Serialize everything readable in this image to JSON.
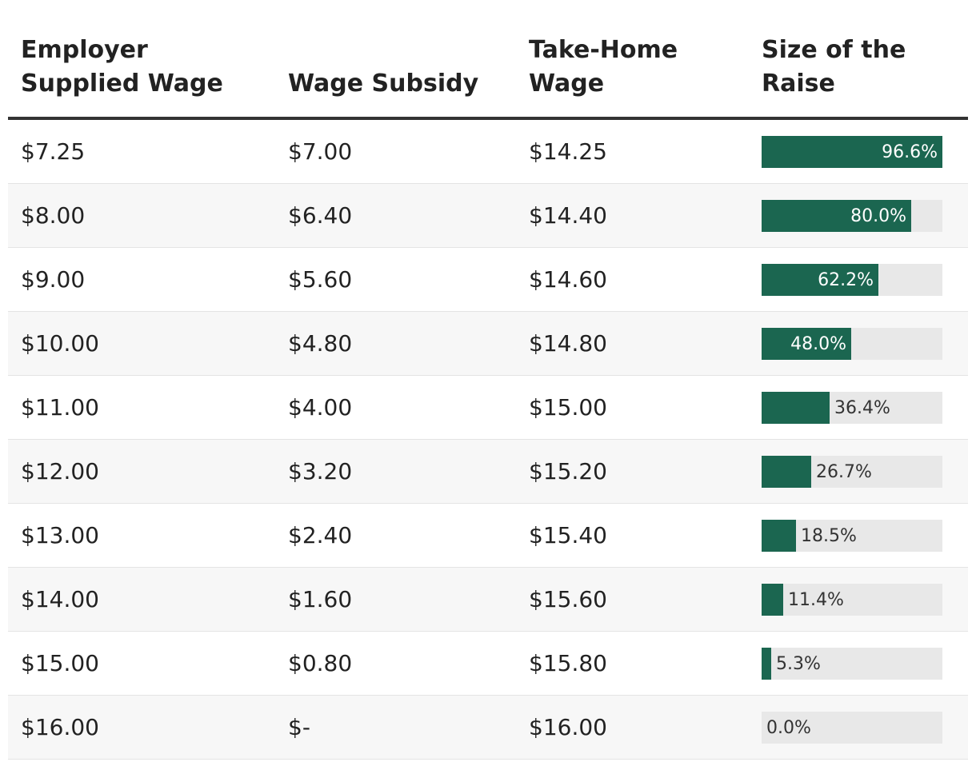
{
  "headers": {
    "employer_wage": "Employer\nSupplied Wage",
    "wage_subsidy": "Wage Subsidy",
    "take_home": "Take-Home\nWage",
    "raise": "Size of the\nRaise"
  },
  "colors": {
    "bar_fill": "#1b6650",
    "bar_track": "#e8e8e8",
    "header_rule": "#333333",
    "row_alt": "#f7f7f7"
  },
  "chart_data": {
    "type": "table",
    "columns": [
      "Employer Supplied Wage",
      "Wage Subsidy",
      "Take-Home Wage",
      "Size of the Raise"
    ],
    "bar_max": 96.6,
    "rows": [
      {
        "employer_wage": "$7.25",
        "wage_subsidy": "$7.00",
        "take_home": "$14.25",
        "raise": 96.6,
        "raise_label": "96.6%"
      },
      {
        "employer_wage": "$8.00",
        "wage_subsidy": "$6.40",
        "take_home": "$14.40",
        "raise": 80.0,
        "raise_label": "80.0%"
      },
      {
        "employer_wage": "$9.00",
        "wage_subsidy": "$5.60",
        "take_home": "$14.60",
        "raise": 62.2,
        "raise_label": "62.2%"
      },
      {
        "employer_wage": "$10.00",
        "wage_subsidy": "$4.80",
        "take_home": "$14.80",
        "raise": 48.0,
        "raise_label": "48.0%"
      },
      {
        "employer_wage": "$11.00",
        "wage_subsidy": "$4.00",
        "take_home": "$15.00",
        "raise": 36.4,
        "raise_label": "36.4%"
      },
      {
        "employer_wage": "$12.00",
        "wage_subsidy": "$3.20",
        "take_home": "$15.20",
        "raise": 26.7,
        "raise_label": "26.7%"
      },
      {
        "employer_wage": "$13.00",
        "wage_subsidy": "$2.40",
        "take_home": "$15.40",
        "raise": 18.5,
        "raise_label": "18.5%"
      },
      {
        "employer_wage": "$14.00",
        "wage_subsidy": "$1.60",
        "take_home": "$15.60",
        "raise": 11.4,
        "raise_label": "11.4%"
      },
      {
        "employer_wage": "$15.00",
        "wage_subsidy": "$0.80",
        "take_home": "$15.80",
        "raise": 5.3,
        "raise_label": "5.3%"
      },
      {
        "employer_wage": "$16.00",
        "wage_subsidy": "$-",
        "take_home": "$16.00",
        "raise": 0.0,
        "raise_label": "0.0%"
      }
    ]
  }
}
